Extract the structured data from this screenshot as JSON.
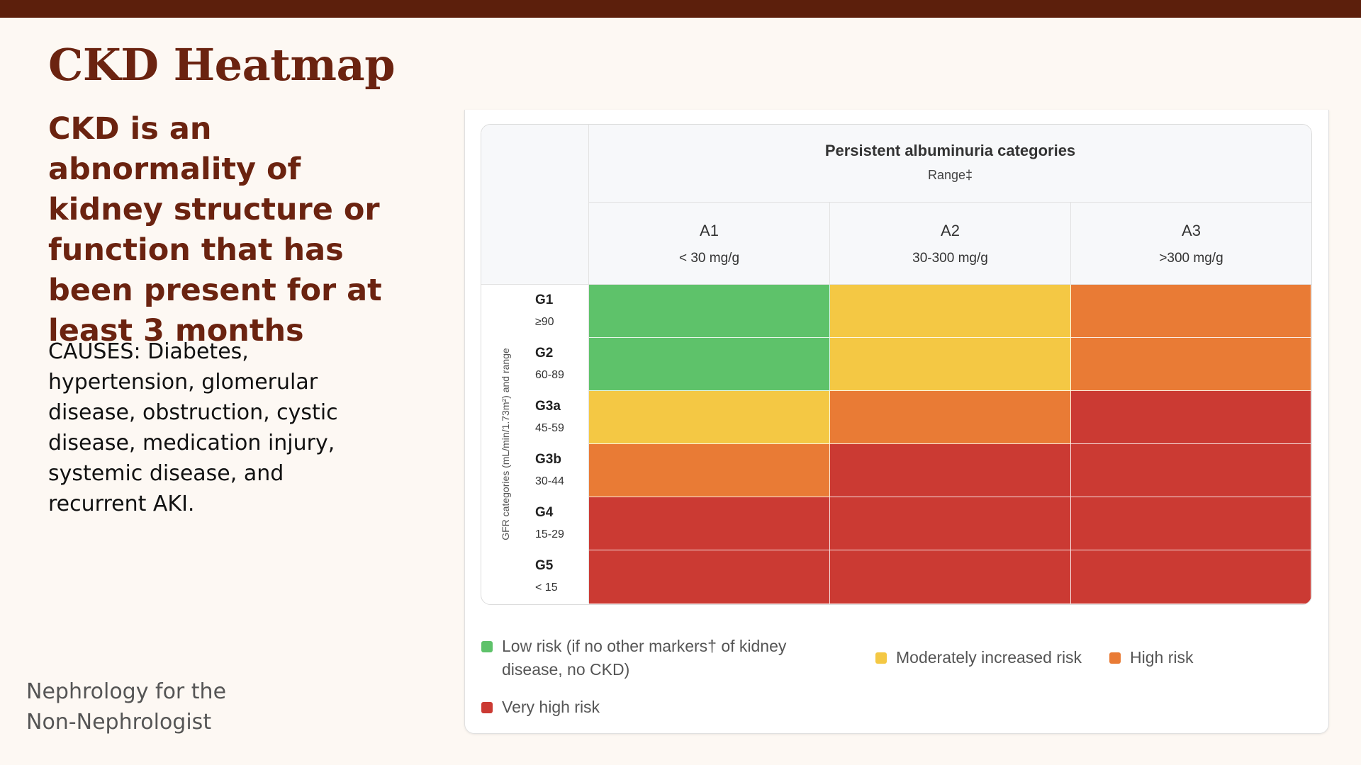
{
  "slide": {
    "title": "CKD Heatmap",
    "subtitle": "CKD is an abnormality of kidney structure or function that has been present for at least 3 months",
    "causes": "CAUSES: Diabetes, hypertension, glomerular disease, obstruction, cystic disease, medication injury, systemic disease, and recurrent AKI.",
    "footer": "Nephrology for the Non-Nephrologist",
    "brand_color": "#6b2310"
  },
  "heatmap": {
    "header_title": "Persistent albuminuria categories",
    "header_range": "Range‡",
    "row_axis_label": "GFR categories (mL/min/1.73m²) and range",
    "columns": [
      {
        "category": "A1",
        "range": "< 30 mg/g"
      },
      {
        "category": "A2",
        "range": "30-300 mg/g"
      },
      {
        "category": "A3",
        "range": ">300 mg/g"
      }
    ],
    "rows": [
      {
        "category": "G1",
        "range": "≥90",
        "risks": [
          "low",
          "moderate",
          "high"
        ]
      },
      {
        "category": "G2",
        "range": "60-89",
        "risks": [
          "low",
          "moderate",
          "high"
        ]
      },
      {
        "category": "G3a",
        "range": "45-59",
        "risks": [
          "moderate",
          "high",
          "very_high"
        ]
      },
      {
        "category": "G3b",
        "range": "30-44",
        "risks": [
          "high",
          "very_high",
          "very_high"
        ]
      },
      {
        "category": "G4",
        "range": "15-29",
        "risks": [
          "very_high",
          "very_high",
          "very_high"
        ]
      },
      {
        "category": "G5",
        "range": "< 15",
        "risks": [
          "very_high",
          "very_high",
          "very_high"
        ]
      }
    ],
    "risk_colors": {
      "low": "#5ec26a",
      "moderate": "#f4c844",
      "high": "#e97b35",
      "very_high": "#cb3a33"
    },
    "legend": [
      {
        "key": "low",
        "label": "Low risk (if no other markers† of kidney disease, no CKD)"
      },
      {
        "key": "moderate",
        "label": "Moderately increased risk"
      },
      {
        "key": "high",
        "label": "High risk"
      },
      {
        "key": "very_high",
        "label": "Very high risk"
      }
    ]
  }
}
